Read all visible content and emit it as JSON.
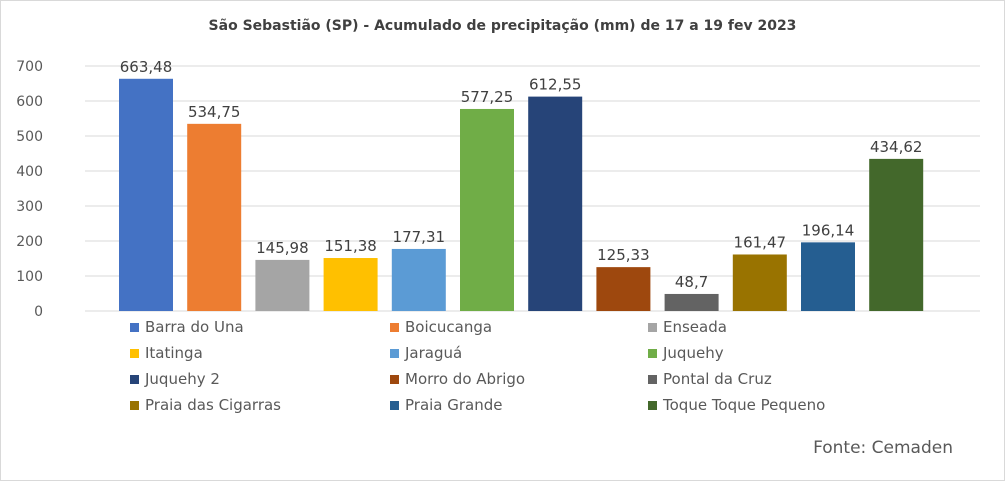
{
  "chart_data": {
    "type": "bar",
    "title": "São Sebastião (SP) -  Acumulado de precipitação (mm) de 17 a 19 fev 2023",
    "xlabel": "",
    "ylabel": "",
    "ylim": [
      0,
      700
    ],
    "yticks": [
      "0",
      "100",
      "200",
      "300",
      "400",
      "500",
      "600",
      "700"
    ],
    "grid": true,
    "legend_position": "bottom",
    "series": [
      {
        "name": "Barra do Una",
        "value": 663.48,
        "label": "663,48",
        "color": "#4472C4"
      },
      {
        "name": "Boicucanga",
        "value": 534.75,
        "label": "534,75",
        "color": "#ED7D31"
      },
      {
        "name": "Enseada",
        "value": 145.98,
        "label": "145,98",
        "color": "#A5A5A5"
      },
      {
        "name": "Itatinga",
        "value": 151.38,
        "label": "151,38",
        "color": "#FFC000"
      },
      {
        "name": "Jaraguá",
        "value": 177.31,
        "label": "177,31",
        "color": "#5B9BD5"
      },
      {
        "name": "Juquehy",
        "value": 577.25,
        "label": "577,25",
        "color": "#70AD47"
      },
      {
        "name": "Juquehy 2",
        "value": 612.55,
        "label": "612,55",
        "color": "#264478"
      },
      {
        "name": "Morro do Abrigo",
        "value": 125.33,
        "label": "125,33",
        "color": "#9E480E"
      },
      {
        "name": "Pontal da Cruz",
        "value": 48.7,
        "label": "48,7",
        "color": "#636363"
      },
      {
        "name": "Praia das Cigarras",
        "value": 161.47,
        "label": "161,47",
        "color": "#997300"
      },
      {
        "name": "Praia Grande",
        "value": 196.14,
        "label": "196,14",
        "color": "#255E91"
      },
      {
        "name": "Toque Toque Pequeno",
        "value": 434.62,
        "label": "434,62",
        "color": "#43682B"
      }
    ]
  },
  "source_note": "Fonte: Cemaden"
}
